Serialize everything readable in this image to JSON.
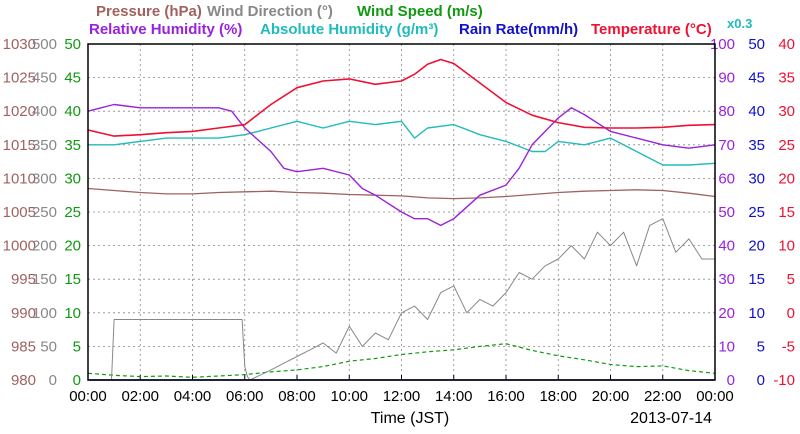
{
  "chart_data": {
    "type": "line",
    "date": "2013-07-14",
    "xlabel": "Time (JST)",
    "x_ticks": [
      "00:00",
      "02:00",
      "04:00",
      "06:00",
      "08:00",
      "10:00",
      "12:00",
      "14:00",
      "16:00",
      "18:00",
      "20:00",
      "22:00",
      "00:00"
    ],
    "grid": true,
    "legend_row1": [
      {
        "key": "pressure",
        "text": "Pressure (hPa)",
        "color": "#a0625f"
      },
      {
        "key": "wdir",
        "text": "Wind Direction (°)",
        "color": "#888888"
      },
      {
        "key": "wspd",
        "text": "Wind Speed (m/s)",
        "color": "#119911"
      }
    ],
    "legend_row2": [
      {
        "key": "rh",
        "text": "Relative Humidity (%)",
        "color": "#9922dd"
      },
      {
        "key": "ah",
        "text": "Absolute Humidity (g/m³)",
        "color": "#22bbbb"
      },
      {
        "key": "rain",
        "text": "Rain Rate(mm/h)",
        "color": "#1111cc"
      },
      {
        "key": "temp",
        "text": "Temperature (°C)",
        "color": "#ee1133"
      }
    ],
    "ah_scale_label": "x0.3",
    "axes": {
      "pressure": {
        "color": "#a0625f",
        "ticks": [
          "1030",
          "1025",
          "1020",
          "1015",
          "1010",
          "1005",
          "1000",
          "995",
          "990",
          "985",
          "980"
        ],
        "range": [
          980,
          1030
        ]
      },
      "wdir": {
        "color": "#888888",
        "ticks": [
          "500",
          "450",
          "400",
          "350",
          "300",
          "250",
          "200",
          "150",
          "100",
          "50",
          "0"
        ],
        "range": [
          0,
          500
        ]
      },
      "wspd": {
        "color": "#119911",
        "ticks": [
          "50",
          "45",
          "40",
          "35",
          "30",
          "25",
          "20",
          "15",
          "10",
          "5",
          "0"
        ],
        "range": [
          0,
          50
        ]
      },
      "rh": {
        "color": "#9922dd",
        "ticks": [
          "100",
          "90",
          "80",
          "70",
          "60",
          "50",
          "40",
          "30",
          "20",
          "10",
          "0"
        ],
        "range": [
          0,
          100
        ]
      },
      "rain": {
        "color": "#1111cc",
        "ticks": [
          "50",
          "45",
          "40",
          "35",
          "30",
          "25",
          "20",
          "15",
          "10",
          "5",
          "0"
        ],
        "range": [
          0,
          50
        ]
      },
      "temp": {
        "color": "#ee1133",
        "ticks": [
          "40",
          "35",
          "30",
          "25",
          "20",
          "15",
          "10",
          "5",
          "0",
          "-5",
          "-10"
        ],
        "range": [
          -10,
          40
        ]
      }
    },
    "series": [
      {
        "name": "Temperature (°C)",
        "key": "temp",
        "color": "#ee1133",
        "x": [
          0,
          1,
          2,
          3,
          4,
          5,
          6,
          7,
          8,
          9,
          10,
          11,
          12,
          12.5,
          13,
          13.5,
          14,
          15,
          16,
          17,
          18,
          19,
          20,
          21,
          22,
          23,
          24
        ],
        "y": [
          27.2,
          26.3,
          26.5,
          26.8,
          27,
          27.5,
          28,
          31,
          33.5,
          34.5,
          34.8,
          34,
          34.5,
          35.5,
          37,
          37.7,
          37.1,
          34.2,
          31.3,
          29.4,
          28.3,
          27.6,
          27.5,
          27.5,
          27.6,
          27.9,
          28
        ]
      },
      {
        "name": "Relative Humidity (%)",
        "key": "rh",
        "color": "#9922dd",
        "x": [
          0,
          0.5,
          1,
          2,
          3,
          4,
          5,
          5.5,
          6,
          7,
          7.5,
          8,
          9,
          10,
          10.5,
          11,
          12,
          12.5,
          13,
          13.5,
          14,
          15,
          16,
          16.5,
          17,
          18,
          18.5,
          19,
          20,
          21,
          22,
          23,
          24
        ],
        "y": [
          80,
          81,
          82,
          81,
          81,
          81,
          81,
          80,
          75,
          68,
          63,
          62,
          63,
          61,
          57,
          55,
          50,
          48,
          48,
          46,
          48,
          55,
          58,
          63,
          70,
          78,
          81,
          79,
          74,
          72,
          70,
          69,
          70
        ]
      },
      {
        "name": "Absolute Humidity (g/m³)",
        "key": "ah",
        "color": "#22bbbb",
        "x": [
          0,
          1,
          2,
          3,
          4,
          5,
          6,
          6.5,
          7,
          8,
          9,
          10,
          11,
          12,
          12.5,
          13,
          14,
          15,
          16,
          17,
          17.5,
          18,
          19,
          20,
          21,
          22,
          23,
          24
        ],
        "y": [
          70,
          70,
          71,
          72,
          72,
          72,
          73,
          74,
          75,
          77,
          75,
          77,
          76,
          77,
          72,
          75,
          76,
          73,
          71,
          68,
          68,
          71,
          70,
          72,
          68,
          64,
          64,
          64.5
        ]
      },
      {
        "name": "Pressure (hPa)",
        "key": "pressure",
        "color": "#a0625f",
        "x": [
          0,
          1,
          2,
          3,
          4,
          5,
          6,
          7,
          8,
          9,
          10,
          11,
          12,
          13,
          14,
          15,
          16,
          17,
          18,
          19,
          20,
          21,
          22,
          23,
          24
        ],
        "y": [
          1008.5,
          1008.2,
          1007.9,
          1007.7,
          1007.7,
          1007.9,
          1008.0,
          1008.1,
          1007.9,
          1007.8,
          1007.6,
          1007.5,
          1007.4,
          1007.1,
          1007.0,
          1007.1,
          1007.3,
          1007.6,
          1007.9,
          1008.1,
          1008.2,
          1008.3,
          1008.2,
          1007.8,
          1007.3
        ]
      },
      {
        "name": "Wind Direction (°)",
        "key": "wdir",
        "color": "#888888",
        "x": [
          0,
          0.9,
          1.0,
          5.9,
          6.0,
          6.1,
          6.2,
          7.0,
          7.5,
          8.0,
          8.5,
          9,
          9.5,
          10,
          10.5,
          11,
          11.5,
          12,
          12.5,
          13,
          13.5,
          14,
          14.5,
          15,
          15.5,
          16,
          16.5,
          17,
          17.5,
          18,
          18.5,
          19,
          19.5,
          20,
          20.5,
          21,
          21.5,
          22,
          22.5,
          23,
          23.5,
          24
        ],
        "y": [
          0,
          0,
          90,
          90,
          20,
          5,
          0,
          15,
          25,
          35,
          45,
          55,
          40,
          80,
          50,
          70,
          60,
          100,
          110,
          90,
          130,
          140,
          100,
          120,
          110,
          130,
          160,
          150,
          170,
          180,
          200,
          180,
          220,
          200,
          220,
          170,
          230,
          240,
          190,
          210,
          180,
          180
        ]
      },
      {
        "name": "Wind Speed (m/s)",
        "key": "wspd",
        "color": "#119911",
        "x": [
          0,
          1,
          2,
          3,
          4,
          5,
          6,
          7,
          8,
          9,
          10,
          11,
          12,
          13,
          14,
          15,
          16,
          17,
          18,
          19,
          20,
          21,
          22,
          23,
          24
        ],
        "y": [
          1,
          0.7,
          0.5,
          0.6,
          0.4,
          0.6,
          0.8,
          1.2,
          1.5,
          2,
          2.8,
          3.2,
          3.8,
          4.2,
          4.5,
          5,
          5.4,
          4.4,
          3.6,
          3,
          2.3,
          2,
          2.1,
          1.4,
          1
        ]
      },
      {
        "name": "Rain Rate(mm/h)",
        "key": "rain",
        "color": "#1111cc",
        "x": [
          0,
          24
        ],
        "y": [
          0,
          0
        ]
      }
    ]
  }
}
